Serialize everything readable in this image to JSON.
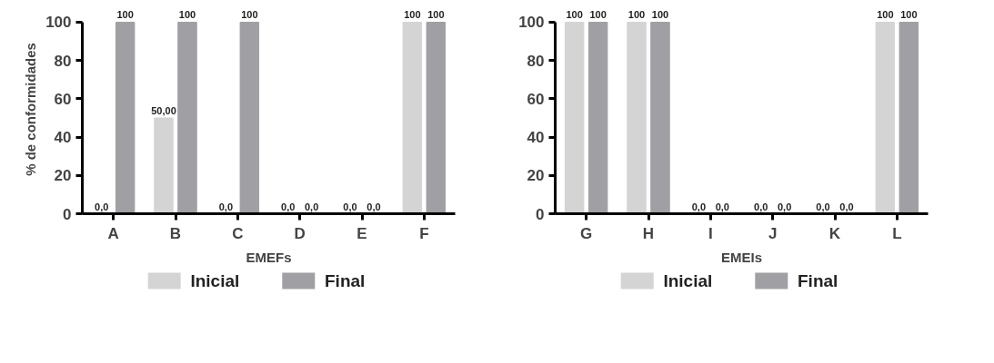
{
  "chart_data": [
    {
      "type": "bar",
      "ylabel": "% de conformidades",
      "xlabel": "EMEFs",
      "categories": [
        "A",
        "B",
        "C",
        "D",
        "E",
        "F"
      ],
      "ylim": [
        0,
        100
      ],
      "yticks": [
        0,
        20,
        40,
        60,
        80,
        100
      ],
      "grid": false,
      "legend": "bottom",
      "series": [
        {
          "name": "Inicial",
          "color": "#d4d4d4",
          "values": [
            0,
            50,
            0,
            0,
            0,
            100
          ],
          "value_labels": [
            "0,0",
            "50,00",
            "0,0",
            "0,0",
            "0,0",
            "100"
          ]
        },
        {
          "name": "Final",
          "color": "#a0a0a4",
          "values": [
            100,
            100,
            100,
            0,
            0,
            100
          ],
          "value_labels": [
            "100",
            "100",
            "100",
            "0,0",
            "0,0",
            "100"
          ]
        }
      ]
    },
    {
      "type": "bar",
      "xlabel": "EMEIs",
      "categories": [
        "G",
        "H",
        "I",
        "J",
        "K",
        "L"
      ],
      "ylim": [
        0,
        100
      ],
      "yticks": [
        0,
        20,
        40,
        60,
        80,
        100
      ],
      "grid": false,
      "legend": "bottom",
      "series": [
        {
          "name": "Inicial",
          "color": "#d4d4d4",
          "values": [
            100,
            100,
            0,
            0,
            0,
            100
          ],
          "value_labels": [
            "100",
            "100",
            "0,0",
            "0,0",
            "0,0",
            "100"
          ]
        },
        {
          "name": "Final",
          "color": "#a0a0a4",
          "values": [
            100,
            100,
            0,
            0,
            0,
            100
          ],
          "value_labels": [
            "100",
            "100",
            "0,0",
            "0,0",
            "0,0",
            "100"
          ]
        }
      ]
    }
  ]
}
